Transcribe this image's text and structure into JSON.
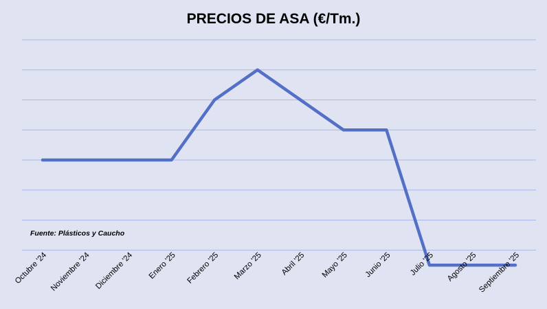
{
  "chart_data": {
    "type": "line",
    "title": "PRECIOS DE ASA (€/Tm.)",
    "source_note": "Fuente: Plásticos y Caucho",
    "categories": [
      "Octubre '24",
      "Noviembre '24",
      "Diciembre '24",
      "Enero '25",
      "Febrero '25",
      "Marzo '25",
      "Abril '25",
      "Mayo '25",
      "Junio '25",
      "Julio '25",
      "Agosto '25",
      "Septiembre '25"
    ],
    "series": [
      {
        "values": [
          2,
          2,
          2,
          2,
          4,
          5,
          4,
          3,
          3,
          -1.5,
          -1.5,
          -1.5
        ]
      }
    ],
    "ylim": [
      -2,
      6
    ],
    "y_gridlines": [
      -1,
      0,
      1,
      2,
      3,
      4,
      5,
      6
    ],
    "y_tick_labels_shown": false,
    "grid": true,
    "legend": "none",
    "colors": {
      "series": "#5470c6",
      "grid": "#aab8e8",
      "background": "#dfe3f2"
    }
  }
}
